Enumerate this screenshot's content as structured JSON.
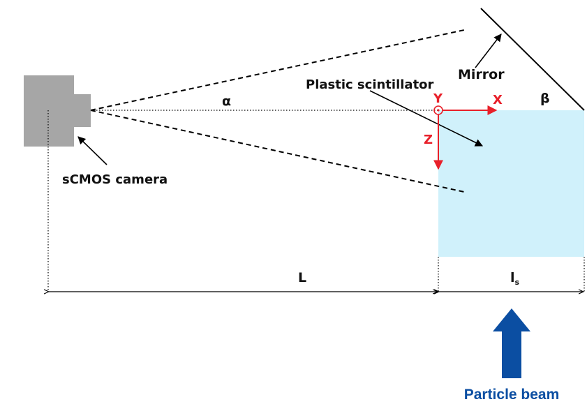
{
  "labels": {
    "mirror": "Mirror",
    "scintillator": "Plastic scintillator",
    "camera": "sCMOS camera",
    "alpha": "α",
    "beta": "β",
    "distance_L": "L",
    "length_ls_main": "l",
    "length_ls_sub": "s",
    "particle_beam": "Particle beam"
  },
  "axes": {
    "x": "X",
    "y": "Y",
    "z": "Z"
  },
  "colors": {
    "camera": "#a6a6a6",
    "scintillator": "#d0f1fb",
    "axes": "#e8202a",
    "beam": "#0b4ea2",
    "line": "#000000"
  },
  "icons": {
    "y_axis": "circle-dot-out-of-plane-icon",
    "beam": "up-arrow-icon"
  }
}
